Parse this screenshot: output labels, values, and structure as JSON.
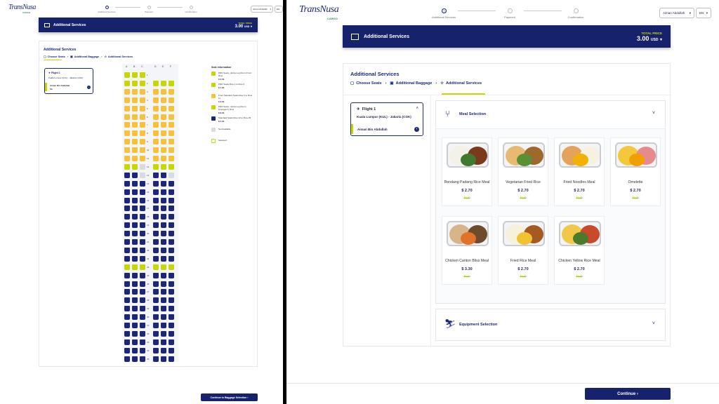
{
  "brand": {
    "name": "TransNusa",
    "tagline": "CARGO"
  },
  "left": {
    "stepper": [
      "Additional Services",
      "Payment",
      "Confirmation"
    ],
    "user_name": "Aiman Abdullah",
    "language": "EN",
    "banner": {
      "title": "Additional Services",
      "total_label": "TOTAL PRICE",
      "total_value": "3.00",
      "currency": "USD"
    },
    "page_title": "Additional Services",
    "breadcrumb": [
      "Choose Seats",
      "Additional Baggage",
      "Additional Services"
    ],
    "flight": {
      "label": "Flight 1",
      "route": "Kuala Lumpur (KUL) - Jakarta (CGK)",
      "passenger": "Aiman Bin Abdullah",
      "seat": "6A"
    },
    "seat_columns": [
      "A",
      "B",
      "C",
      "D",
      "E",
      "F"
    ],
    "seat_rows": [
      "1",
      "2",
      "3",
      "4",
      "5",
      "6",
      "7",
      "8",
      "9",
      "10",
      "11",
      "12",
      "13",
      "14",
      "15",
      "16",
      "17",
      "18",
      "19",
      "20",
      "21",
      "22",
      "23",
      "24",
      "25",
      "26",
      "27",
      "28",
      "29",
      "30",
      "31",
      "32",
      "33",
      "34",
      "35"
    ],
    "selected_seat_label": "6A",
    "legend_title": "Seat Information",
    "legend": [
      {
        "label": "PRO Seats - Extra Leg Room Front Row",
        "price": "$ 5.00",
        "color": "#c6d800"
      },
      {
        "label": "PRO Seats Row 1 to Row 2",
        "price": "$ 4.00",
        "color": "#c6d800"
      },
      {
        "label": "Front Standard Seats Row 3 to Row 11",
        "price": "$ 3.00",
        "color": "#f6c23a"
      },
      {
        "label": "PRO Seats - Extra Leg Room Emergency Row",
        "price": "$ 8.00",
        "color": "#c6d800"
      },
      {
        "label": "Standard Seats Row 13 to Row 35",
        "price": "$ 2.00",
        "color": "#1d2679"
      },
      {
        "label": "Not Available",
        "price": "",
        "color": "#d9dbe3"
      },
      {
        "label": "Selected",
        "price": "",
        "color": "#ffffff"
      }
    ],
    "continue_label": "Continue to Baggage Selection"
  },
  "right": {
    "stepper": [
      "Additional Services",
      "Payment",
      "Confirmation"
    ],
    "user_name": "Aiman Abdullah",
    "language": "EN",
    "banner": {
      "title": "Additional Services",
      "total_label": "TOTAL PRICE",
      "total_value": "3.00",
      "currency": "USD"
    },
    "page_title": "Additional Services",
    "breadcrumb": [
      "Choose Seats",
      "Additional Baggage",
      "Additional Services"
    ],
    "flight": {
      "label": "Flight 1",
      "route": "Kuala Lumpur (KUL) - Jakarta (CGK)",
      "passenger": "Aiman Bin Abdullah"
    },
    "meal_section": "Meal Selection",
    "meals": [
      {
        "name": "Rendang Padang Rice Meal",
        "price": "$ 2.70",
        "old_price": "$3.00"
      },
      {
        "name": "Vegetarian Fried Rice",
        "price": "$ 2.70",
        "old_price": "$3.00"
      },
      {
        "name": "Fried Noodles Meal",
        "price": "$ 2.70",
        "old_price": "$3.00"
      },
      {
        "name": "Omelette",
        "price": "$ 2.70",
        "old_price": "$3.00"
      },
      {
        "name": "Chicken Canton Bliss Meal",
        "price": "$ 3.30",
        "old_price": "$3.50"
      },
      {
        "name": "Fried Rice Meal",
        "price": "$ 2.70",
        "old_price": "$3.00"
      },
      {
        "name": "Chicken Yellow Rice Meal",
        "price": "$ 2.70",
        "old_price": "$3.00"
      }
    ],
    "equipment_section": "Equipment Selection",
    "continue_label": "Continue"
  }
}
